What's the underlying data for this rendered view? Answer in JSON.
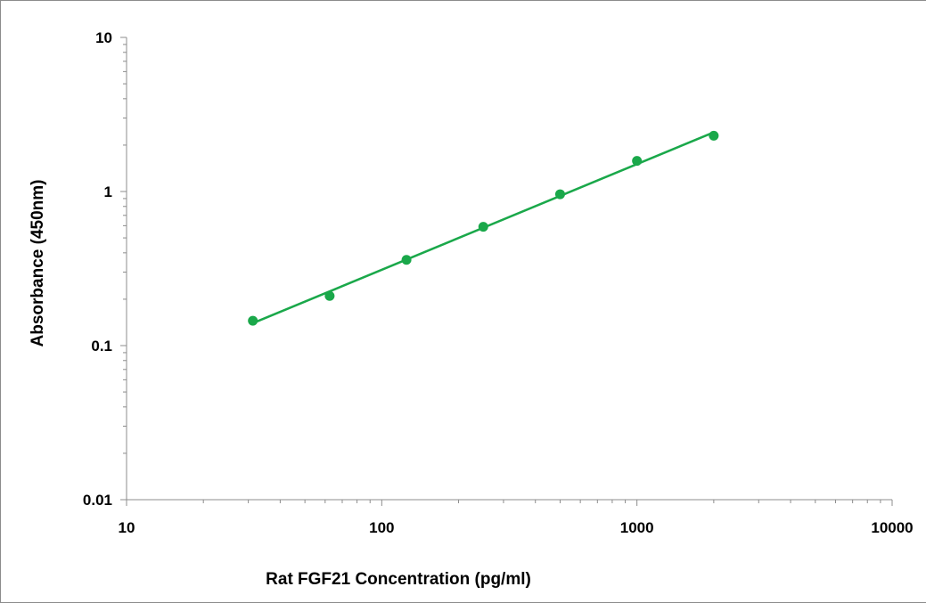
{
  "chart_data": {
    "type": "scatter",
    "title": "",
    "xlabel": "Rat FGF21 Concentration (pg/ml)",
    "ylabel": "Absorbance (450nm)",
    "xscale": "log",
    "yscale": "log",
    "xlim": [
      10,
      10000
    ],
    "ylim": [
      0.01,
      10
    ],
    "x_ticks": [
      10,
      100,
      1000,
      10000
    ],
    "x_tick_labels": [
      "10",
      "100",
      "1000",
      "10000"
    ],
    "y_ticks": [
      0.01,
      0.1,
      1,
      10
    ],
    "y_tick_labels": [
      "0.01",
      "0.1",
      "1",
      "10"
    ],
    "grid": false,
    "legend": "none",
    "series": [
      {
        "x": [
          31.25,
          62.5,
          125,
          250,
          500,
          1000,
          2000
        ],
        "y": [
          0.145,
          0.21,
          0.36,
          0.59,
          0.96,
          1.58,
          2.3
        ],
        "marker": "circle",
        "trendline": "power",
        "color": "#1aa84a"
      }
    ]
  }
}
